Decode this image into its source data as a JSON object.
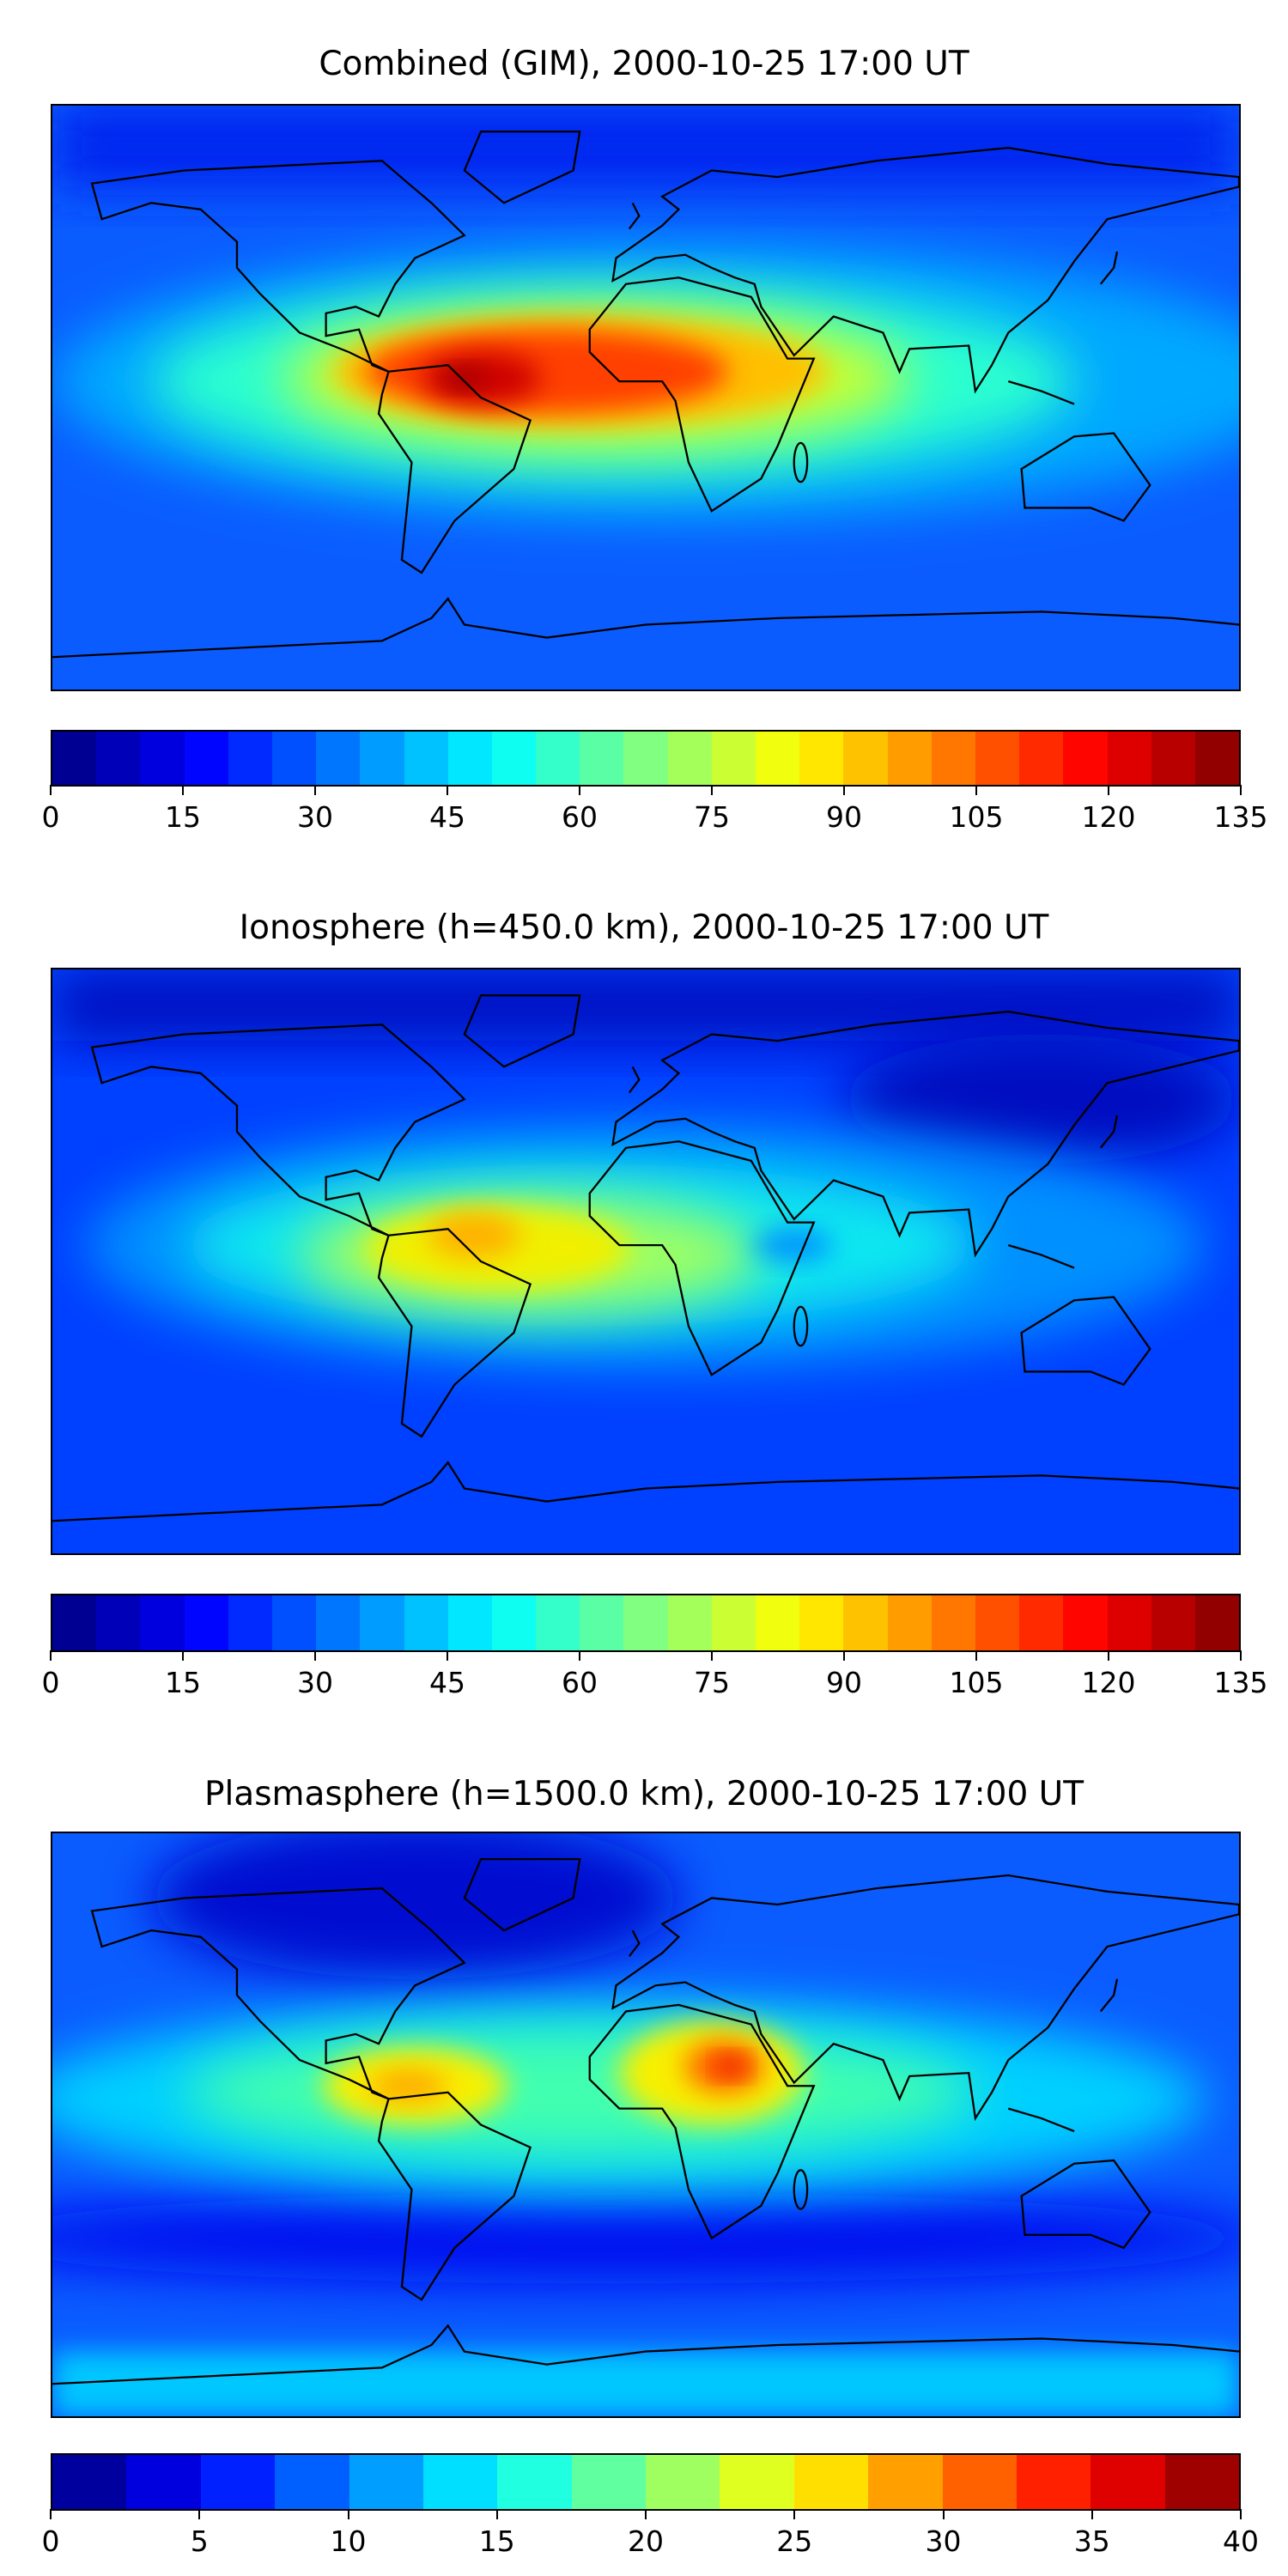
{
  "colormap": "jet",
  "chart_data": [
    {
      "type": "heatmap",
      "title": "Combined (GIM), 2000-10-25 17:00 UT",
      "projection": "equirectangular world map with coastlines",
      "colorbar": {
        "min": 0,
        "max": 135,
        "step": 5,
        "ticks": [
          "0",
          "15",
          "30",
          "45",
          "60",
          "75",
          "90",
          "105",
          "120",
          "135"
        ]
      },
      "features": [
        {
          "region": "background (high latitudes)",
          "value": 20
        },
        {
          "region": "equatorial band Pacific–Africa",
          "value": 60
        },
        {
          "region": "tropical Atlantic / Africa",
          "value": 95
        },
        {
          "region": "South America / Atlantic peak",
          "value": 120
        },
        {
          "region": "Brazil maximum",
          "value": 132
        }
      ]
    },
    {
      "type": "heatmap",
      "title": "Ionosphere  (h=450.0 km), 2000-10-25 17:00 UT",
      "projection": "equirectangular world map with coastlines",
      "colorbar": {
        "min": 0,
        "max": 135,
        "step": 5,
        "ticks": [
          "0",
          "15",
          "30",
          "45",
          "60",
          "75",
          "90",
          "105",
          "120",
          "135"
        ]
      },
      "features": [
        {
          "region": "background (high latitudes / Asia)",
          "value": 10
        },
        {
          "region": "equatorial band",
          "value": 45
        },
        {
          "region": "tropical Atlantic",
          "value": 75
        },
        {
          "region": "South America",
          "value": 90
        },
        {
          "region": "Brazil maximum",
          "value": 100
        }
      ]
    },
    {
      "type": "heatmap",
      "title": "Plasmasphere (h=1500.0 km), 2000-10-25 17:00 UT",
      "projection": "equirectangular world map with coastlines",
      "colorbar": {
        "min": 0,
        "max": 40,
        "step": 2.5,
        "ticks": [
          "0",
          "5",
          "10",
          "15",
          "20",
          "25",
          "30",
          "35",
          "40"
        ]
      },
      "features": [
        {
          "region": "background",
          "value": 8
        },
        {
          "region": "North America / Arctic minimum",
          "value": 3
        },
        {
          "region": "low-latitude band",
          "value": 15
        },
        {
          "region": "South America maximum",
          "value": 28
        },
        {
          "region": "Central Africa maximum",
          "value": 33
        }
      ]
    }
  ]
}
